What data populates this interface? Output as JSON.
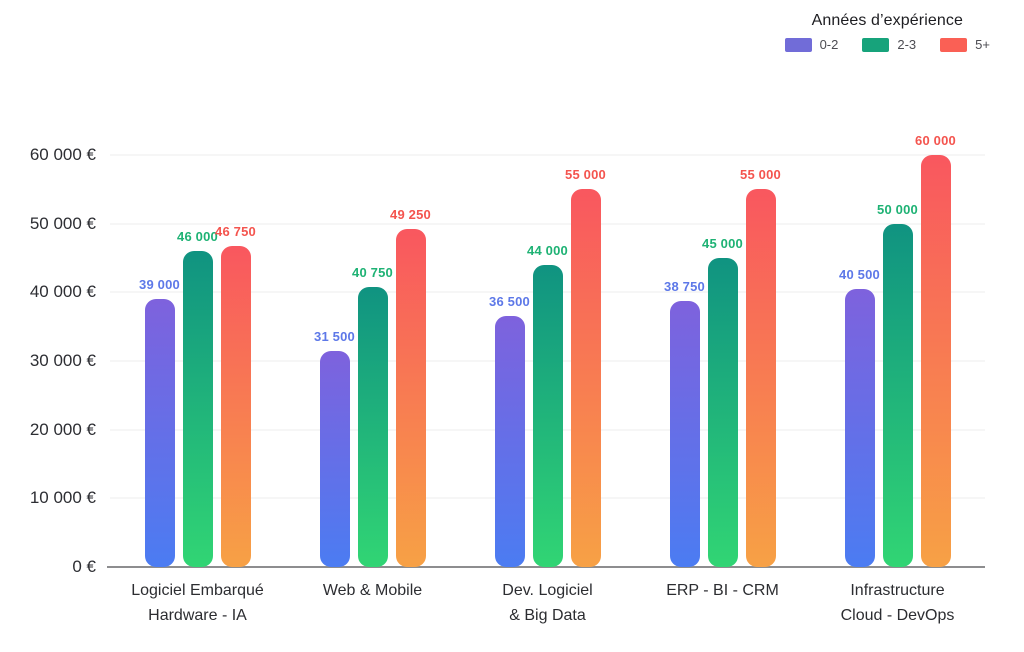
{
  "legend": {
    "title": "Années d’expérience",
    "items": [
      {
        "label": "0-2",
        "color": "#716cd8"
      },
      {
        "label": "2-3",
        "color": "#17a37b"
      },
      {
        "label": "5+",
        "color": "#fa6055"
      }
    ]
  },
  "chart_data": {
    "type": "bar",
    "title": "Années d’expérience",
    "xlabel": "",
    "ylabel": "",
    "ylim": [
      0,
      60000
    ],
    "y_ticks": [
      0,
      10000,
      20000,
      30000,
      40000,
      50000,
      60000
    ],
    "y_tick_suffix": " €",
    "grid": true,
    "legend_position": "top-right",
    "categories": [
      [
        "Logiciel Embarqué",
        "Hardware - IA"
      ],
      [
        "Web & Mobile"
      ],
      [
        "Dev. Logiciel",
        "& Big Data"
      ],
      [
        "ERP - BI - CRM"
      ],
      [
        "Infrastructure",
        "Cloud - DevOps"
      ]
    ],
    "series": [
      {
        "name": "0-2",
        "values": [
          39000,
          31500,
          36500,
          38750,
          40500
        ],
        "gradient_top": "#7e62dd",
        "gradient_bottom": "#4b7cf2",
        "label_color": "#5d78e8"
      },
      {
        "name": "2-3",
        "values": [
          46000,
          40750,
          44000,
          45000,
          50000
        ],
        "gradient_top": "#109381",
        "gradient_bottom": "#31d574",
        "label_color": "#1eb274"
      },
      {
        "name": "5+",
        "values": [
          46750,
          49250,
          55000,
          55000,
          60000
        ],
        "gradient_top": "#f9575f",
        "gradient_bottom": "#f7a145",
        "label_color": "#f4544e"
      }
    ]
  }
}
